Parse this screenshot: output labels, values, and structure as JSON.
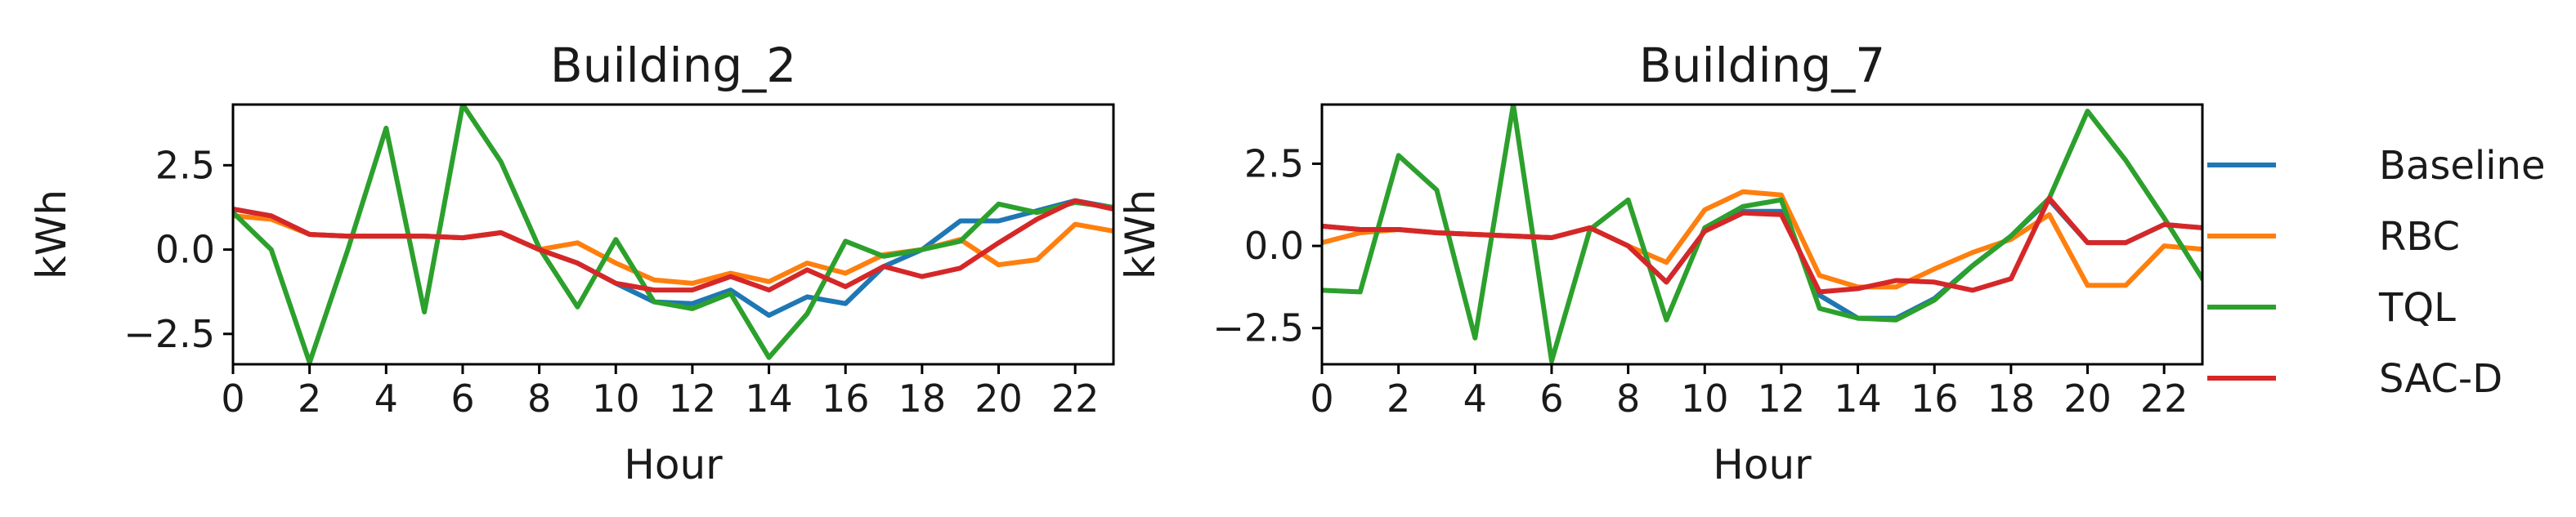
{
  "chart_data": [
    {
      "type": "line",
      "title": "Building_2",
      "xlabel": "Hour",
      "ylabel": "kWh",
      "xlim": [
        0,
        23
      ],
      "ylim": [
        -3.4,
        4.3
      ],
      "xticks": [
        0,
        2,
        4,
        6,
        8,
        10,
        12,
        14,
        16,
        18,
        20,
        22
      ],
      "yticks": [
        -2.5,
        0.0,
        2.5
      ],
      "ytick_labels": [
        "−2.5",
        "0.0",
        "2.5"
      ],
      "grid": false,
      "x": [
        0,
        1,
        2,
        3,
        4,
        5,
        6,
        7,
        8,
        9,
        10,
        11,
        12,
        13,
        14,
        15,
        16,
        17,
        18,
        19,
        20,
        21,
        22,
        23
      ],
      "series": [
        {
          "name": "Baseline",
          "color": "#1f77b4",
          "values": [
            1.2,
            1.0,
            0.45,
            0.4,
            0.4,
            0.4,
            0.35,
            0.5,
            0.0,
            -0.4,
            -1.0,
            -1.55,
            -1.6,
            -1.2,
            -1.95,
            -1.4,
            -1.6,
            -0.5,
            0.0,
            0.85,
            0.85,
            1.15,
            1.45,
            1.25
          ]
        },
        {
          "name": "RBC",
          "color": "#ff7f0e",
          "values": [
            1.0,
            0.9,
            0.45,
            0.4,
            0.4,
            0.4,
            0.35,
            0.5,
            0.0,
            0.2,
            -0.4,
            -0.9,
            -1.0,
            -0.7,
            -0.95,
            -0.4,
            -0.7,
            -0.15,
            0.0,
            0.3,
            -0.45,
            -0.3,
            0.75,
            0.55
          ]
        },
        {
          "name": "TQL",
          "color": "#2ca02c",
          "values": [
            1.1,
            0.0,
            -3.35,
            0.0,
            3.6,
            -1.85,
            4.3,
            2.6,
            0.05,
            -1.7,
            0.3,
            -1.55,
            -1.75,
            -1.3,
            -3.2,
            -1.9,
            0.25,
            -0.2,
            0.0,
            0.25,
            1.35,
            1.1,
            1.4,
            1.25
          ]
        },
        {
          "name": "SAC-D",
          "color": "#d62728",
          "values": [
            1.2,
            1.0,
            0.45,
            0.4,
            0.4,
            0.4,
            0.35,
            0.5,
            0.0,
            -0.4,
            -1.0,
            -1.2,
            -1.2,
            -0.8,
            -1.2,
            -0.6,
            -1.1,
            -0.5,
            -0.8,
            -0.55,
            0.2,
            0.9,
            1.45,
            1.2
          ]
        }
      ]
    },
    {
      "type": "line",
      "title": "Building_7",
      "xlabel": "Hour",
      "ylabel": "kWh",
      "xlim": [
        0,
        23
      ],
      "ylim": [
        -3.6,
        4.3
      ],
      "xticks": [
        0,
        2,
        4,
        6,
        8,
        10,
        12,
        14,
        16,
        18,
        20,
        22
      ],
      "yticks": [
        -2.5,
        0.0,
        2.5
      ],
      "ytick_labels": [
        "−2.5",
        "0.0",
        "2.5"
      ],
      "grid": false,
      "x": [
        0,
        1,
        2,
        3,
        4,
        5,
        6,
        7,
        8,
        9,
        10,
        11,
        12,
        13,
        14,
        15,
        16,
        17,
        18,
        19,
        20,
        21,
        22,
        23
      ],
      "series": [
        {
          "name": "Baseline",
          "color": "#1f77b4",
          "values": [
            0.6,
            0.5,
            0.5,
            0.4,
            0.35,
            0.3,
            0.25,
            0.55,
            0.0,
            -1.1,
            0.45,
            1.05,
            1.05,
            -1.5,
            -2.2,
            -2.2,
            -1.6,
            -0.6,
            0.3,
            1.4,
            0.1,
            0.1,
            0.65,
            0.55
          ]
        },
        {
          "name": "RBC",
          "color": "#ff7f0e",
          "values": [
            0.1,
            0.4,
            0.5,
            0.4,
            0.35,
            0.3,
            0.25,
            0.55,
            0.0,
            -0.5,
            1.1,
            1.65,
            1.55,
            -0.9,
            -1.25,
            -1.25,
            -0.7,
            -0.2,
            0.2,
            0.95,
            -1.2,
            -1.2,
            0.0,
            -0.1
          ]
        },
        {
          "name": "TQL",
          "color": "#2ca02c",
          "values": [
            -1.35,
            -1.4,
            2.75,
            1.7,
            -2.8,
            4.3,
            -3.5,
            0.5,
            1.4,
            -2.25,
            0.55,
            1.2,
            1.4,
            -1.9,
            -2.2,
            -2.25,
            -1.65,
            -0.6,
            0.3,
            1.45,
            4.1,
            2.6,
            0.85,
            -1.0
          ]
        },
        {
          "name": "SAC-D",
          "color": "#d62728",
          "values": [
            0.6,
            0.5,
            0.5,
            0.4,
            0.35,
            0.3,
            0.25,
            0.55,
            0.0,
            -1.1,
            0.45,
            1.0,
            0.95,
            -1.4,
            -1.3,
            -1.05,
            -1.1,
            -1.35,
            -1.0,
            1.45,
            0.1,
            0.1,
            0.65,
            0.55
          ]
        }
      ]
    }
  ],
  "legend": {
    "placement": "right",
    "entries": [
      {
        "label": "Baseline",
        "color": "#1f77b4"
      },
      {
        "label": "RBC",
        "color": "#ff7f0e"
      },
      {
        "label": "TQL",
        "color": "#2ca02c"
      },
      {
        "label": "SAC-D",
        "color": "#d62728"
      }
    ]
  }
}
